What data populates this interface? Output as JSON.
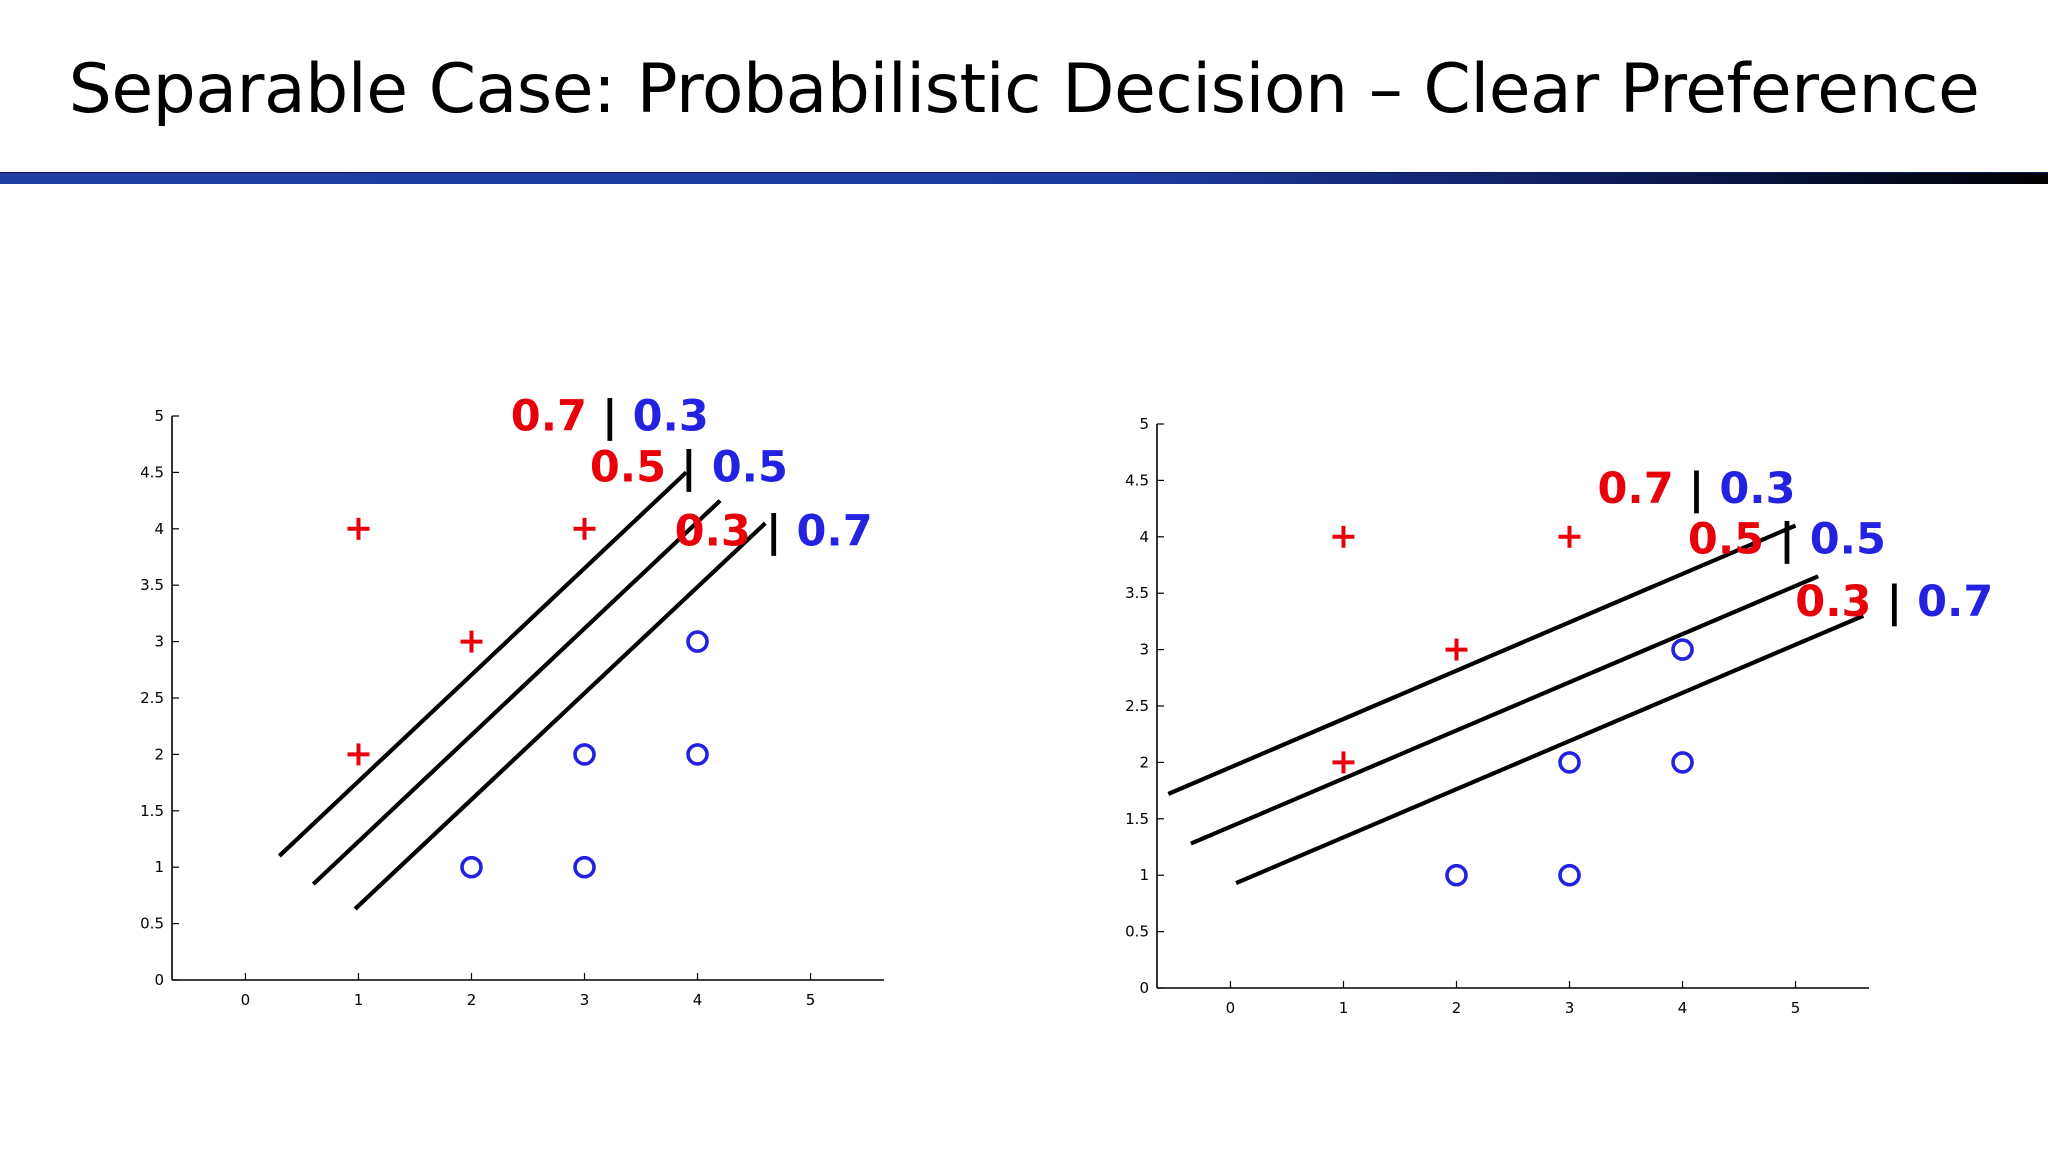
{
  "slide": {
    "title": "Separable Case: Probabilistic Decision – Clear Preference",
    "accent_colors": {
      "positive": "#e8000b",
      "negative": "#2222e0",
      "separator": "#000000",
      "rule": "#1d3aa0"
    }
  },
  "chart_data": [
    {
      "type": "scatter",
      "xlim": [
        -0.65,
        5.65
      ],
      "ylim": [
        0,
        5
      ],
      "xticks": [
        "0",
        "1",
        "2",
        "3",
        "4",
        "5"
      ],
      "yticks": [
        "0",
        "0.5",
        "1",
        "1.5",
        "2",
        "2.5",
        "3",
        "3.5",
        "4",
        "4.5",
        "5"
      ],
      "grid": false,
      "series": [
        {
          "marker": "plus",
          "color": "#e8000b",
          "points": [
            [
              1,
              4
            ],
            [
              3,
              4
            ],
            [
              2,
              3
            ],
            [
              1,
              2
            ]
          ]
        },
        {
          "marker": "circle",
          "color": "#2222e0",
          "points": [
            [
              4,
              3
            ],
            [
              3,
              2
            ],
            [
              4,
              2
            ],
            [
              2,
              1
            ],
            [
              3,
              1
            ]
          ]
        }
      ],
      "lines": [
        {
          "from": [
            0.3,
            1.1
          ],
          "to": [
            3.9,
            4.5
          ]
        },
        {
          "from": [
            0.6,
            0.85
          ],
          "to": [
            4.2,
            4.25
          ]
        },
        {
          "from": [
            0.97,
            0.63
          ],
          "to": [
            4.6,
            4.05
          ]
        }
      ],
      "annotations": [
        {
          "red": "0.7",
          "sep": "|",
          "blue": "0.3",
          "at": [
            4.1,
            4.87
          ]
        },
        {
          "red": "0.5",
          "sep": "|",
          "blue": "0.5",
          "at": [
            4.8,
            4.42
          ]
        },
        {
          "red": "0.3",
          "sep": "|",
          "blue": "0.7",
          "at": [
            5.55,
            3.85
          ]
        }
      ]
    },
    {
      "type": "scatter",
      "xlim": [
        -0.65,
        5.65
      ],
      "ylim": [
        0,
        5
      ],
      "xticks": [
        "0",
        "1",
        "2",
        "3",
        "4",
        "5"
      ],
      "yticks": [
        "0",
        "0.5",
        "1",
        "1.5",
        "2",
        "2.5",
        "3",
        "3.5",
        "4",
        "4.5",
        "5"
      ],
      "grid": false,
      "series": [
        {
          "marker": "plus",
          "color": "#e8000b",
          "points": [
            [
              1,
              4
            ],
            [
              3,
              4
            ],
            [
              2,
              3
            ],
            [
              1,
              2
            ]
          ]
        },
        {
          "marker": "circle",
          "color": "#2222e0",
          "points": [
            [
              4,
              3
            ],
            [
              3,
              2
            ],
            [
              4,
              2
            ],
            [
              2,
              1
            ],
            [
              3,
              1
            ]
          ]
        }
      ],
      "lines": [
        {
          "from": [
            -0.55,
            1.72
          ],
          "to": [
            5.0,
            4.1
          ]
        },
        {
          "from": [
            -0.35,
            1.28
          ],
          "to": [
            5.2,
            3.65
          ]
        },
        {
          "from": [
            0.05,
            0.93
          ],
          "to": [
            5.6,
            3.3
          ]
        }
      ],
      "annotations": [
        {
          "red": "0.7",
          "sep": "|",
          "blue": "0.3",
          "at": [
            5.0,
            4.3
          ]
        },
        {
          "red": "0.5",
          "sep": "|",
          "blue": "0.5",
          "at": [
            5.8,
            3.85
          ]
        },
        {
          "red": "0.3",
          "sep": "|",
          "blue": "0.7",
          "at": [
            6.75,
            3.3
          ]
        }
      ]
    }
  ]
}
